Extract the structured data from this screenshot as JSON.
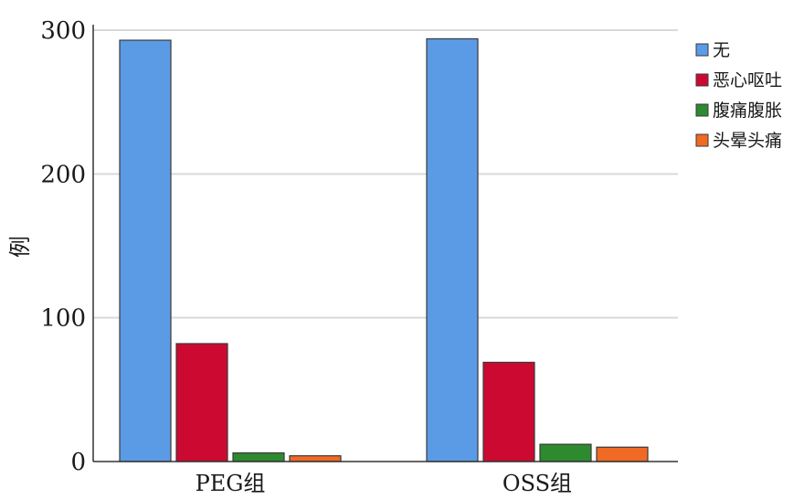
{
  "chart_data": {
    "type": "bar",
    "categories": [
      "PEG组",
      "OSS组"
    ],
    "series": [
      {
        "name": "无",
        "values": [
          293,
          294
        ],
        "color": "#5b9be6"
      },
      {
        "name": "恶心呕吐",
        "values": [
          82,
          69
        ],
        "color": "#cc0a31"
      },
      {
        "name": "腹痛腹胀",
        "values": [
          6,
          12
        ],
        "color": "#2e8a2e"
      },
      {
        "name": "头晕头痛",
        "values": [
          4,
          10
        ],
        "color": "#f06a23"
      }
    ],
    "title": "",
    "xlabel": "",
    "ylabel": "例",
    "ylim": [
      0,
      300
    ],
    "yticks": [
      0,
      100,
      200,
      300
    ],
    "grid": true,
    "legend_position": "top-right"
  }
}
